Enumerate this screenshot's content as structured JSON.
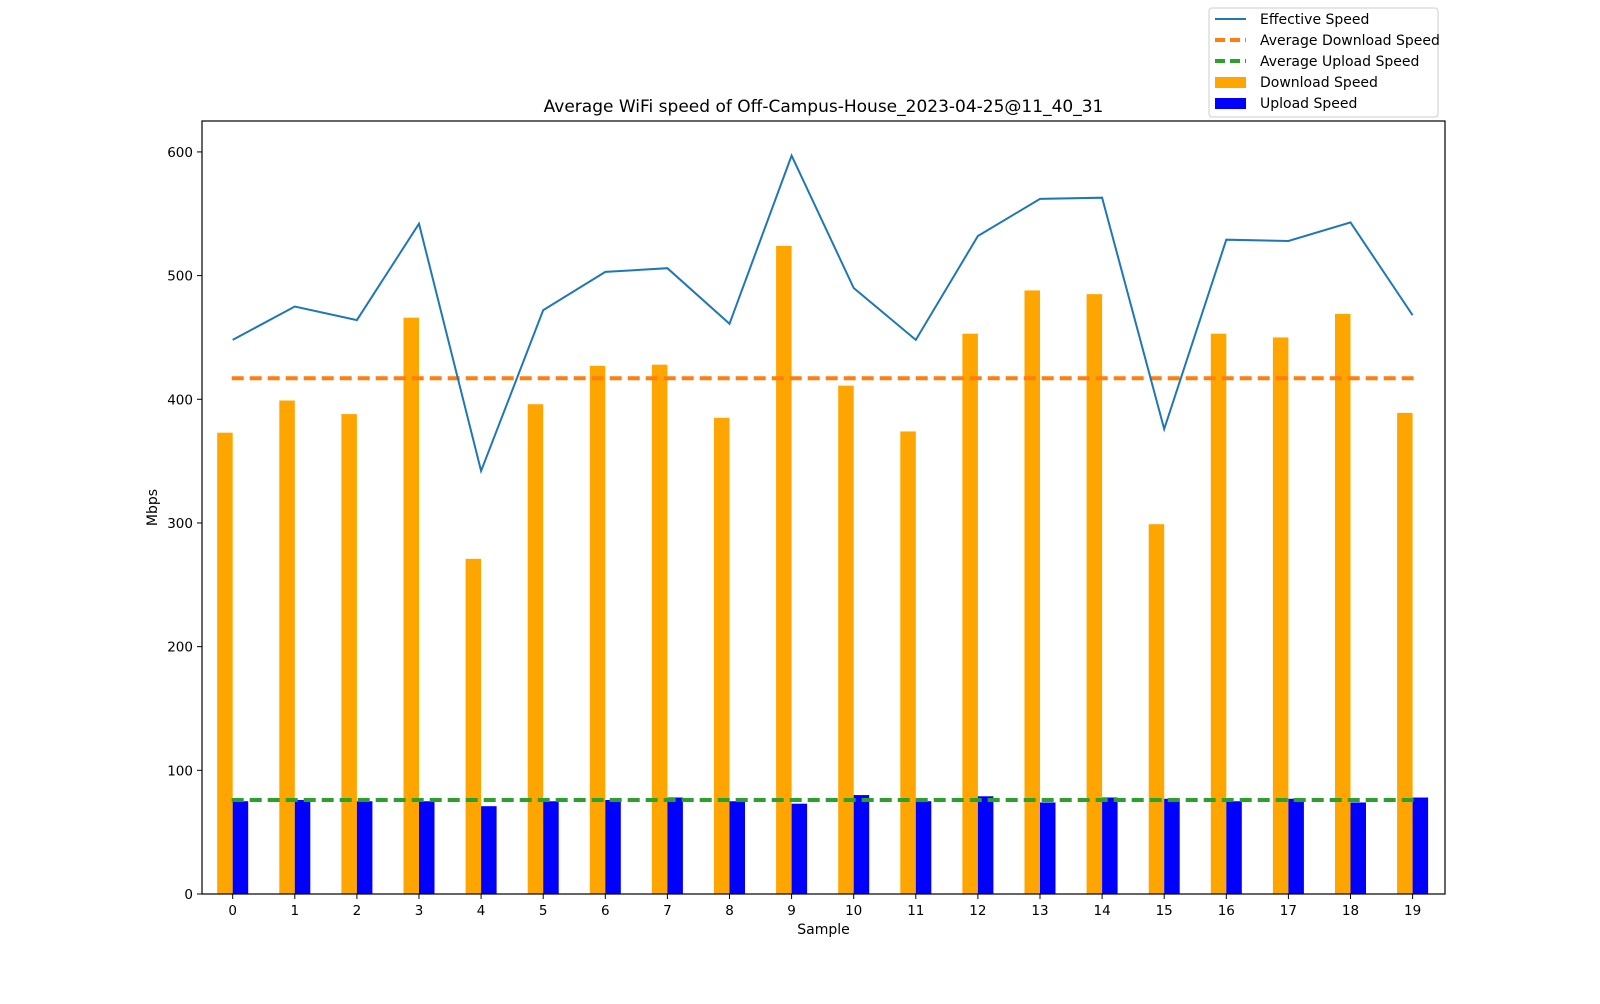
{
  "chart_data": {
    "type": "bar",
    "title": "Average WiFi speed of Off-Campus-House_2023-04-25@11_40_31",
    "xlabel": "Sample",
    "ylabel": "Mbps",
    "ylim": [
      0,
      625
    ],
    "yticks": [
      0,
      100,
      200,
      300,
      400,
      500,
      600
    ],
    "categories": [
      "0",
      "1",
      "2",
      "3",
      "4",
      "5",
      "6",
      "7",
      "8",
      "9",
      "10",
      "11",
      "12",
      "13",
      "14",
      "15",
      "16",
      "17",
      "18",
      "19"
    ],
    "series": [
      {
        "name": "Download Speed",
        "kind": "bar",
        "color": "#FFA500",
        "values": [
          373,
          399,
          388,
          466,
          271,
          396,
          427,
          428,
          385,
          524,
          411,
          374,
          453,
          488,
          485,
          299,
          453,
          450,
          469,
          389
        ]
      },
      {
        "name": "Upload Speed",
        "kind": "bar",
        "color": "#0000FF",
        "values": [
          75,
          76,
          75,
          75,
          71,
          75,
          76,
          78,
          75,
          73,
          80,
          75,
          79,
          74,
          78,
          77,
          75,
          77,
          74,
          78
        ]
      },
      {
        "name": "Effective Speed",
        "kind": "line",
        "color": "#1F77B4",
        "values": [
          448,
          475,
          464,
          542,
          342,
          472,
          503,
          506,
          461,
          597,
          490,
          448,
          532,
          562,
          563,
          376,
          529,
          528,
          543,
          468
        ]
      },
      {
        "name": "Average Download Speed",
        "kind": "hline",
        "color": "#FF7F0E",
        "value": 417
      },
      {
        "name": "Average Upload Speed",
        "kind": "hline",
        "color": "#2CA02C",
        "value": 76
      }
    ],
    "legend": {
      "position": "top-right",
      "items": [
        "Effective Speed",
        "Average Download Speed",
        "Average Upload Speed",
        "Download Speed",
        "Upload Speed"
      ]
    },
    "grid": false
  }
}
